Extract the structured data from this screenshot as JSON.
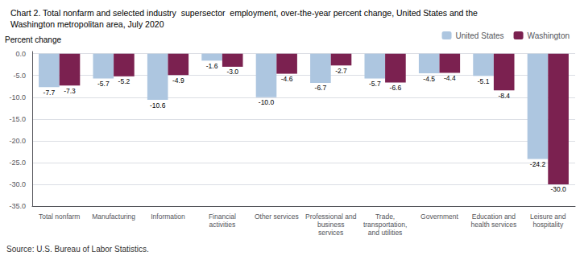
{
  "chart_data": {
    "type": "bar",
    "title": "Chart 2. Total nonfarm and selected industry  supersector  employment, over-the-year percent change, United States and the\nWashington metropolitan area, July 2020",
    "ylabel": "Percent change",
    "annotations": [
      "Source: U.S. Bureau of Labor Statistics."
    ],
    "categories": [
      "Total nonfarm",
      "Manufacturing",
      "Information",
      "Financial\nactivities",
      "Other services",
      "Professional and\nbusiness\nservices",
      "Trade,\ntransportation,\nand utilities",
      "Government",
      "Education and\nhealth services",
      "Leisure and\nhospitality"
    ],
    "series": [
      {
        "name": "United States",
        "color": "#adc6e0",
        "values": [
          -7.7,
          -5.7,
          -10.6,
          -1.6,
          -10.0,
          -6.7,
          -5.7,
          -4.5,
          -5.1,
          -24.2
        ],
        "value_labels": [
          "-7.7",
          "-5.7",
          "-10.6",
          "-1.6",
          "-10.0",
          "-6.7",
          "-5.7",
          "-4.5",
          "-5.1",
          "-24.2"
        ]
      },
      {
        "name": "Washington",
        "color": "#7b2150",
        "values": [
          -7.3,
          -5.2,
          -4.9,
          -3.0,
          -4.6,
          -2.7,
          -6.6,
          -4.4,
          -8.4,
          -30.0
        ],
        "value_labels": [
          "-7.3",
          "-5.2",
          "-4.9",
          "-3.0",
          "-4.6",
          "-2.7",
          "-6.6",
          "-4.4",
          "-8.4",
          "-30.0"
        ]
      }
    ],
    "ylim": [
      -35.0,
      0.5
    ],
    "yticks": [
      {
        "value": 0.0,
        "label": "0.0"
      },
      {
        "value": -5.0,
        "label": "-5.0"
      },
      {
        "value": -10.0,
        "label": "-10.0"
      },
      {
        "value": -15.0,
        "label": "-15.0"
      },
      {
        "value": -20.0,
        "label": "-20.0"
      },
      {
        "value": -25.0,
        "label": "-25.0"
      },
      {
        "value": -30.0,
        "label": "-30.0"
      },
      {
        "value": -35.0,
        "label": "-35.0"
      }
    ],
    "grid": true,
    "legend": "upper right",
    "data_labels": true
  }
}
